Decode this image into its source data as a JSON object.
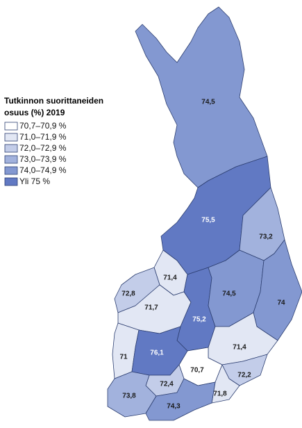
{
  "map_data": {
    "title": [
      "Tutkinnon suorittaneiden",
      "osuus (%) 2019"
    ],
    "legend": [
      {
        "label": "70,7–70,9 %",
        "color": "#ffffff"
      },
      {
        "label": "71,0–71,9 %",
        "color": "#e2e7f4"
      },
      {
        "label": "72,0–72,9 %",
        "color": "#c3cde9"
      },
      {
        "label": "73,0–73,9 %",
        "color": "#a2b2dd"
      },
      {
        "label": "74,0–74,9 %",
        "color": "#8398d1"
      },
      {
        "label": "Yli 75 %",
        "color": "#6179c3"
      }
    ],
    "regions": [
      {
        "value": 74.5,
        "value_label": "74,5",
        "color": "#8398d1"
      },
      {
        "value": 75.5,
        "value_label": "75,5",
        "color": "#6179c3"
      },
      {
        "value": 73.2,
        "value_label": "73,2",
        "color": "#a2b2dd"
      },
      {
        "value": 71.4,
        "value_label": "71,4",
        "color": "#e2e7f4"
      },
      {
        "value": 72.8,
        "value_label": "72,8",
        "color": "#c3cde9"
      },
      {
        "value": 71.7,
        "value_label": "71,7",
        "color": "#e2e7f4"
      },
      {
        "value": 75.2,
        "value_label": "75,2",
        "color": "#6179c3"
      },
      {
        "value": 74.5,
        "value_label": "74,5",
        "color": "#8398d1"
      },
      {
        "value": 74,
        "value_label": "74",
        "color": "#8398d1"
      },
      {
        "value": 71.4,
        "value_label": "71,4",
        "color": "#e2e7f4"
      },
      {
        "value": 70.7,
        "value_label": "70,7",
        "color": "#ffffff"
      },
      {
        "value": 72.2,
        "value_label": "72,2",
        "color": "#c3cde9"
      },
      {
        "value": 71.8,
        "value_label": "71,8",
        "color": "#e2e7f4"
      },
      {
        "value": 71,
        "value_label": "71",
        "color": "#e2e7f4"
      },
      {
        "value": 76.1,
        "value_label": "76,1",
        "color": "#6179c3"
      },
      {
        "value": 72.4,
        "value_label": "72,4",
        "color": "#c3cde9"
      },
      {
        "value": 73.8,
        "value_label": "73,8",
        "color": "#a2b2dd"
      },
      {
        "value": 74.3,
        "value_label": "74,3",
        "color": "#8398d1"
      }
    ]
  }
}
